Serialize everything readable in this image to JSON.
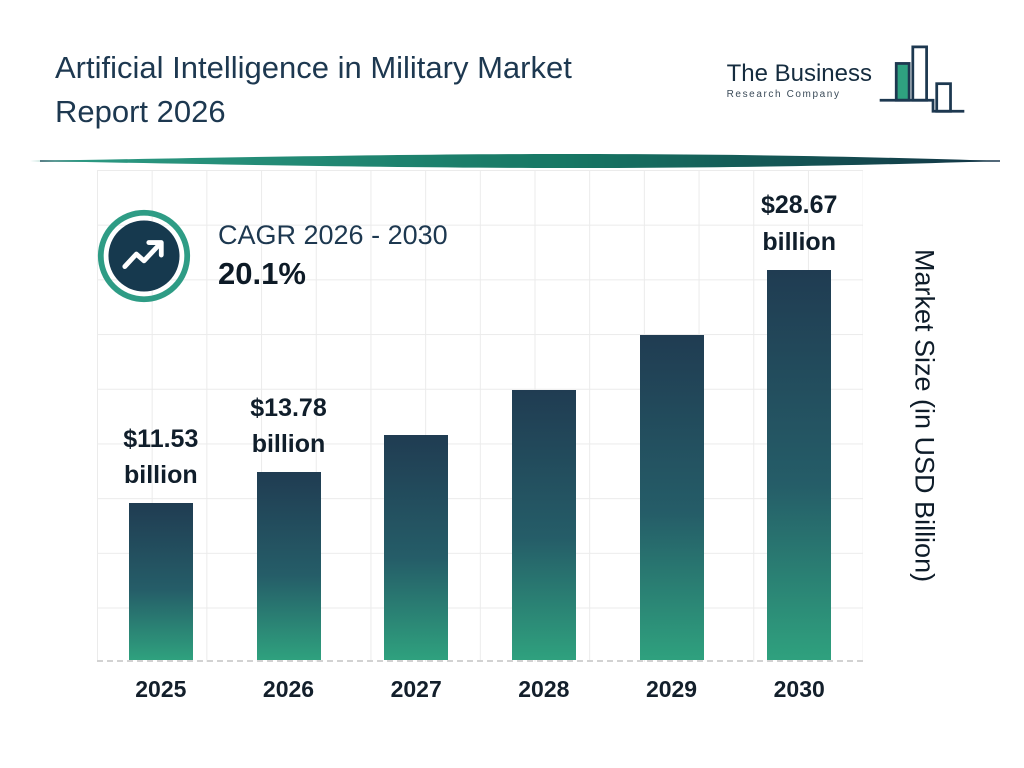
{
  "header": {
    "title_lines": [
      "Artificial Intelligence in Military Market",
      "Report 2026"
    ]
  },
  "logo": {
    "line1": "The Business",
    "line2": "Research Company"
  },
  "cagr_badge": {
    "label": "CAGR 2026 - 2030",
    "value": "20.1%"
  },
  "chart_data": {
    "type": "bar",
    "title": "Artificial Intelligence in Military Market Report 2026",
    "categories": [
      "2025",
      "2026",
      "2027",
      "2028",
      "2029",
      "2030"
    ],
    "values": [
      11.53,
      13.78,
      16.55,
      19.87,
      23.87,
      28.67
    ],
    "bar_labels": [
      {
        "amount": "$11.53",
        "unit": "billion"
      },
      {
        "amount": "$13.78",
        "unit": "billion"
      },
      null,
      null,
      null,
      {
        "amount": "$28.67",
        "unit": "billion"
      }
    ],
    "xlabel": "",
    "ylabel": "Market Size (in USD Billion)",
    "ylim": [
      0,
      36
    ],
    "grid": true,
    "legend": false,
    "colors": {
      "bar_gradient_top": "#203C52",
      "bar_gradient_bottom": "#2FA17E",
      "accent_teal": "#2E9C85",
      "navy": "#16394E"
    }
  }
}
